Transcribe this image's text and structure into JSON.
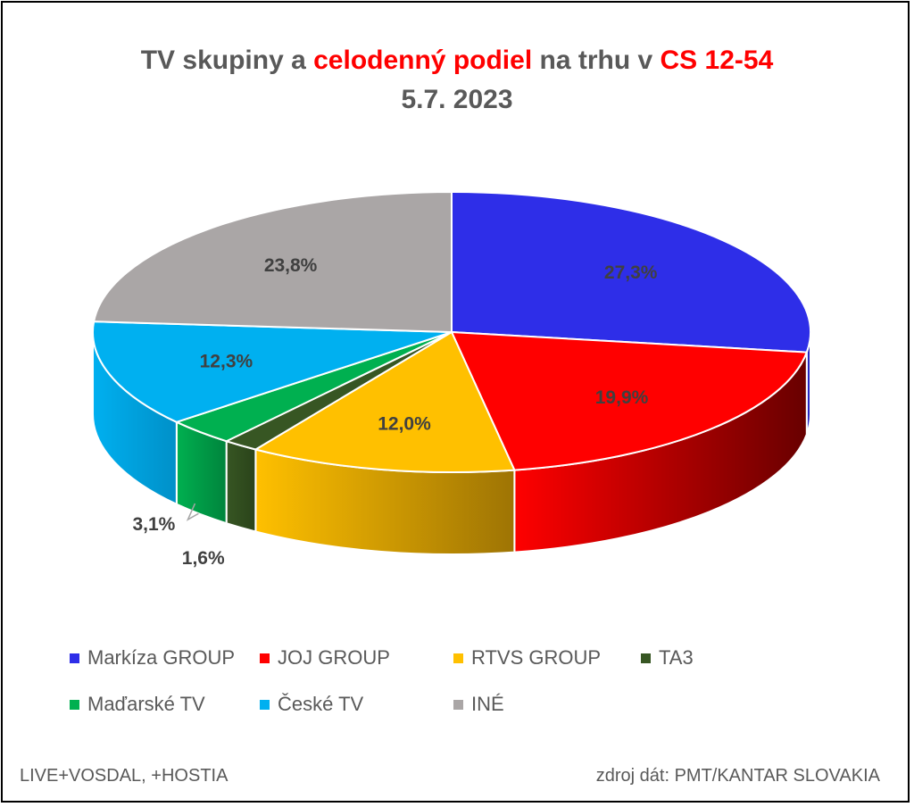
{
  "title": {
    "part1": "TV skupiny a ",
    "part2": "celodenný podiel",
    "part3": " na trhu v ",
    "part4": "CS 12-54",
    "line2": "5.7. 2023"
  },
  "footer": {
    "left": "LIVE+VOSDAL,  +HOSTIA",
    "right": "zdroj dát: PMT/KANTAR SLOVAKIA"
  },
  "chart_data": {
    "type": "pie",
    "style": "3d",
    "unit": "%",
    "legend_position": "bottom",
    "slices": [
      {
        "name": "Markíza GROUP",
        "value": 27.3,
        "label": "27,3%",
        "color": "#2e2ee8",
        "side": "#1b1b9a"
      },
      {
        "name": "JOJ GROUP",
        "value": 19.9,
        "label": "19,9%",
        "color": "#ff0000",
        "side": "#680000"
      },
      {
        "name": "RTVS GROUP",
        "value": 12.0,
        "label": "12,0%",
        "color": "#ffc000",
        "side": "#9e7404"
      },
      {
        "name": "TA3",
        "value": 1.6,
        "label": "1,6%",
        "color": "#375623",
        "side": "#2a431a"
      },
      {
        "name": "Maďarské  TV",
        "value": 3.1,
        "label": "3,1%",
        "color": "#00b050",
        "side": "#00843c"
      },
      {
        "name": "České  TV",
        "value": 12.3,
        "label": "12,3%",
        "color": "#00b0f0",
        "side": "#0090c8"
      },
      {
        "name": "INÉ",
        "value": 23.8,
        "label": "23,8%",
        "color": "#aaa6a6",
        "side": "#7d7a7a"
      }
    ]
  }
}
